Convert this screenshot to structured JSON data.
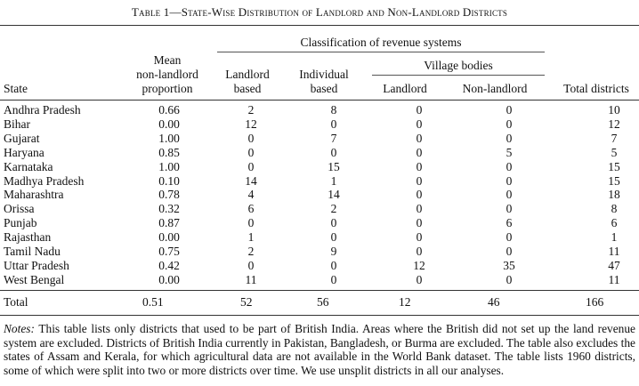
{
  "caption": "Table 1—State-Wise Distribution of Landlord and Non-Landlord Districts",
  "headers": {
    "classification": "Classification of revenue systems",
    "village_bodies": "Village bodies",
    "state": "State",
    "mean_line1": "Mean",
    "mean_line2": "non-landlord",
    "mean_line3": "proportion",
    "landlord_line1": "Landlord",
    "landlord_line2": "based",
    "individual_line1": "Individual",
    "individual_line2": "based",
    "vb_landlord": "Landlord",
    "vb_nonlandlord": "Non-landlord",
    "total": "Total districts"
  },
  "rows": [
    {
      "state": "Andhra Pradesh",
      "mean": "0.66",
      "landlord": "2",
      "individual": "8",
      "vb_landlord": "0",
      "vb_nonlandlord": "0",
      "total": "10"
    },
    {
      "state": "Bihar",
      "mean": "0.00",
      "landlord": "12",
      "individual": "0",
      "vb_landlord": "0",
      "vb_nonlandlord": "0",
      "total": "12"
    },
    {
      "state": "Gujarat",
      "mean": "1.00",
      "landlord": "0",
      "individual": "7",
      "vb_landlord": "0",
      "vb_nonlandlord": "0",
      "total": "7"
    },
    {
      "state": "Haryana",
      "mean": "0.85",
      "landlord": "0",
      "individual": "0",
      "vb_landlord": "0",
      "vb_nonlandlord": "5",
      "total": "5"
    },
    {
      "state": "Karnataka",
      "mean": "1.00",
      "landlord": "0",
      "individual": "15",
      "vb_landlord": "0",
      "vb_nonlandlord": "0",
      "total": "15"
    },
    {
      "state": "Madhya Pradesh",
      "mean": "0.10",
      "landlord": "14",
      "individual": "1",
      "vb_landlord": "0",
      "vb_nonlandlord": "0",
      "total": "15"
    },
    {
      "state": "Maharashtra",
      "mean": "0.78",
      "landlord": "4",
      "individual": "14",
      "vb_landlord": "0",
      "vb_nonlandlord": "0",
      "total": "18"
    },
    {
      "state": "Orissa",
      "mean": "0.32",
      "landlord": "6",
      "individual": "2",
      "vb_landlord": "0",
      "vb_nonlandlord": "0",
      "total": "8"
    },
    {
      "state": "Punjab",
      "mean": "0.87",
      "landlord": "0",
      "individual": "0",
      "vb_landlord": "0",
      "vb_nonlandlord": "6",
      "total": "6"
    },
    {
      "state": "Rajasthan",
      "mean": "0.00",
      "landlord": "1",
      "individual": "0",
      "vb_landlord": "0",
      "vb_nonlandlord": "0",
      "total": "1"
    },
    {
      "state": "Tamil Nadu",
      "mean": "0.75",
      "landlord": "2",
      "individual": "9",
      "vb_landlord": "0",
      "vb_nonlandlord": "0",
      "total": "11"
    },
    {
      "state": "Uttar Pradesh",
      "mean": "0.42",
      "landlord": "0",
      "individual": "0",
      "vb_landlord": "12",
      "vb_nonlandlord": "35",
      "total": "47"
    },
    {
      "state": "West Bengal",
      "mean": "0.00",
      "landlord": "11",
      "individual": "0",
      "vb_landlord": "0",
      "vb_nonlandlord": "0",
      "total": "11"
    }
  ],
  "total_row": {
    "state": "Total",
    "mean": "0.51",
    "landlord": "52",
    "individual": "56",
    "vb_landlord": "12",
    "vb_nonlandlord": "46",
    "total": "166"
  },
  "notes": {
    "label": "Notes:",
    "text": " This table lists only districts that used to be part of British India. Areas where the British did not set up the land revenue system are excluded. Districts of British India currently in Pakistan, Bangladesh, or Burma are excluded. The table also excludes the states of Assam and Kerala, for which agricultural data are not available in the World Bank dataset. The table lists 1960 districts, some of which were split into two or more districts over time. We use unsplit districts in all our analyses."
  }
}
